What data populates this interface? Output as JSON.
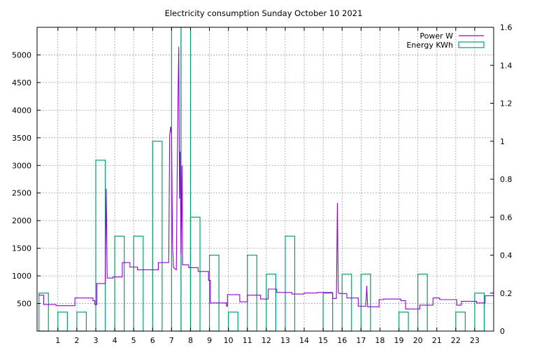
{
  "chart_data": {
    "type": "bar+line",
    "title": "Electricity consumption Sunday October 10 2021",
    "x_ticks": [
      1,
      2,
      3,
      4,
      5,
      6,
      7,
      8,
      9,
      10,
      11,
      12,
      13,
      14,
      15,
      16,
      17,
      18,
      19,
      20,
      21,
      22,
      23
    ],
    "xlim": [
      -0.1,
      24.0
    ],
    "y_left": {
      "ticks": [
        500,
        1000,
        1500,
        2000,
        2500,
        3000,
        3500,
        4000,
        4500,
        5000
      ],
      "lim": [
        0,
        5500
      ]
    },
    "y_right": {
      "ticks": [
        "0",
        "0.2",
        "0.4",
        "0.6",
        "0.8",
        "1",
        "1.2",
        "1.4",
        "1.6"
      ],
      "lim": [
        0,
        1.6
      ]
    },
    "grid": true,
    "legend_position": "top-right",
    "series": [
      {
        "name": "Power W",
        "axis": "left",
        "type": "line",
        "color": "#9400d3",
        "points": [
          [
            0.0,
            650
          ],
          [
            0.25,
            650
          ],
          [
            0.25,
            480
          ],
          [
            0.9,
            480
          ],
          [
            0.9,
            460
          ],
          [
            1.9,
            460
          ],
          [
            1.9,
            600
          ],
          [
            2.85,
            600
          ],
          [
            2.85,
            550
          ],
          [
            2.95,
            550
          ],
          [
            2.95,
            480
          ],
          [
            3.05,
            480
          ],
          [
            3.05,
            860
          ],
          [
            3.5,
            860
          ],
          [
            3.5,
            900
          ],
          [
            3.55,
            2580
          ],
          [
            3.6,
            960
          ],
          [
            3.9,
            960
          ],
          [
            3.9,
            980
          ],
          [
            4.4,
            980
          ],
          [
            4.4,
            1240
          ],
          [
            4.8,
            1240
          ],
          [
            4.8,
            1160
          ],
          [
            5.2,
            1160
          ],
          [
            5.2,
            1110
          ],
          [
            6.3,
            1110
          ],
          [
            6.3,
            1240
          ],
          [
            6.85,
            1240
          ],
          [
            6.9,
            3550
          ],
          [
            6.95,
            3700
          ],
          [
            7.0,
            3550
          ],
          [
            7.05,
            1600
          ],
          [
            7.1,
            1150
          ],
          [
            7.25,
            1110
          ],
          [
            7.3,
            3000
          ],
          [
            7.35,
            4500
          ],
          [
            7.38,
            5150
          ],
          [
            7.42,
            2400
          ],
          [
            7.45,
            3250
          ],
          [
            7.5,
            1400
          ],
          [
            7.55,
            3000
          ],
          [
            7.58,
            1200
          ],
          [
            7.9,
            1200
          ],
          [
            7.9,
            1150
          ],
          [
            8.4,
            1150
          ],
          [
            8.4,
            1080
          ],
          [
            8.95,
            1080
          ],
          [
            8.95,
            920
          ],
          [
            9.05,
            920
          ],
          [
            9.05,
            510
          ],
          [
            9.9,
            510
          ],
          [
            9.9,
            450
          ],
          [
            9.95,
            450
          ],
          [
            9.95,
            660
          ],
          [
            10.6,
            660
          ],
          [
            10.6,
            530
          ],
          [
            11.0,
            530
          ],
          [
            11.0,
            650
          ],
          [
            11.7,
            650
          ],
          [
            11.7,
            580
          ],
          [
            12.1,
            580
          ],
          [
            12.1,
            760
          ],
          [
            12.55,
            760
          ],
          [
            12.55,
            700
          ],
          [
            13.35,
            700
          ],
          [
            13.35,
            670
          ],
          [
            14.0,
            670
          ],
          [
            14.0,
            690
          ],
          [
            14.7,
            690
          ],
          [
            14.7,
            700
          ],
          [
            15.5,
            700
          ],
          [
            15.5,
            590
          ],
          [
            15.7,
            590
          ],
          [
            15.75,
            2320
          ],
          [
            15.8,
            700
          ],
          [
            15.85,
            680
          ],
          [
            16.25,
            680
          ],
          [
            16.25,
            600
          ],
          [
            16.85,
            600
          ],
          [
            16.85,
            450
          ],
          [
            17.25,
            450
          ],
          [
            17.3,
            820
          ],
          [
            17.35,
            450
          ],
          [
            17.35,
            440
          ],
          [
            17.95,
            440
          ],
          [
            17.95,
            570
          ],
          [
            18.2,
            570
          ],
          [
            18.2,
            580
          ],
          [
            19.1,
            580
          ],
          [
            19.1,
            550
          ],
          [
            19.35,
            550
          ],
          [
            19.35,
            400
          ],
          [
            20.1,
            400
          ],
          [
            20.1,
            470
          ],
          [
            20.8,
            470
          ],
          [
            20.8,
            600
          ],
          [
            21.15,
            600
          ],
          [
            21.15,
            570
          ],
          [
            22.05,
            570
          ],
          [
            22.05,
            470
          ],
          [
            22.3,
            470
          ],
          [
            22.3,
            540
          ],
          [
            23.1,
            540
          ],
          [
            23.1,
            510
          ],
          [
            23.55,
            510
          ],
          [
            23.55,
            640
          ],
          [
            24.0,
            640
          ]
        ]
      },
      {
        "name": "Energy KWh",
        "axis": "right",
        "type": "bar",
        "color": "#009e73",
        "bar_width": 0.5,
        "bars": [
          [
            0.0,
            0.2
          ],
          [
            1.0,
            0.1
          ],
          [
            2.0,
            0.1
          ],
          [
            3.0,
            0.9
          ],
          [
            4.0,
            0.5
          ],
          [
            5.0,
            0.5
          ],
          [
            6.0,
            1.0
          ],
          [
            7.0,
            1.6
          ],
          [
            7.5,
            1.6
          ],
          [
            8.0,
            0.6
          ],
          [
            9.0,
            0.4
          ],
          [
            10.0,
            0.1
          ],
          [
            11.0,
            0.4
          ],
          [
            12.0,
            0.3
          ],
          [
            13.0,
            0.5
          ],
          [
            15.0,
            0.2
          ],
          [
            16.0,
            0.3
          ],
          [
            17.0,
            0.3
          ],
          [
            19.0,
            0.1
          ],
          [
            20.0,
            0.3
          ],
          [
            22.0,
            0.1
          ],
          [
            23.0,
            0.2
          ]
        ]
      }
    ]
  }
}
